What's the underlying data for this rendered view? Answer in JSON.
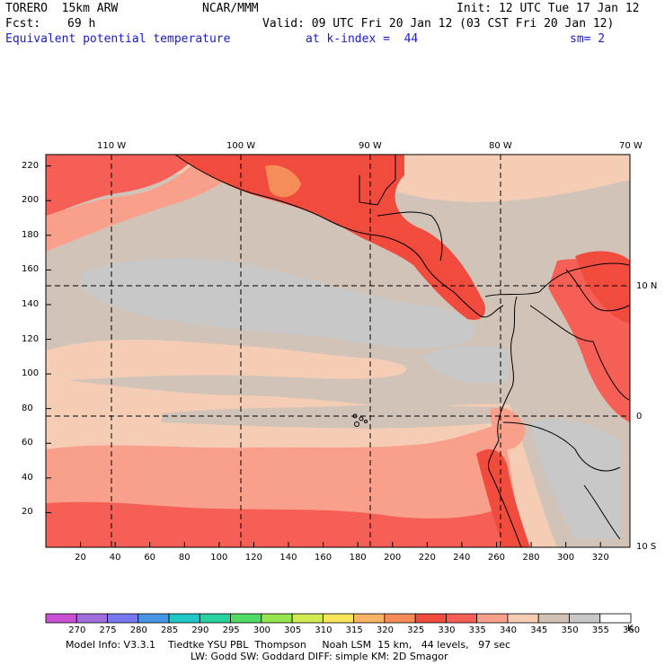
{
  "header": {
    "model": "TORERO  15km ARW",
    "org": "NCAR/MMM",
    "init": "Init: 12 UTC Tue 17 Jan 12",
    "fcst_label": "Fcst:",
    "fcst_value": "69 h",
    "valid": "Valid: 09 UTC Fri 20 Jan 12 (03 CST Fri 20 Jan 12)",
    "field": "Equivalent potential temperature",
    "level": "at k-index =  44",
    "smoothing": "sm= 2"
  },
  "map": {
    "lon_labels": [
      "110 W",
      "100 W",
      "90 W",
      "80 W",
      "70 W"
    ],
    "lat_labels": [
      "10 N",
      "0",
      "10 S"
    ],
    "y_grid_ticks": [
      "220",
      "200",
      "180",
      "160",
      "140",
      "120",
      "100",
      "80",
      "60",
      "40",
      "20"
    ],
    "x_grid_ticks": [
      "20",
      "40",
      "60",
      "80",
      "100",
      "120",
      "140",
      "160",
      "180",
      "200",
      "220",
      "240",
      "260",
      "280",
      "300",
      "320"
    ]
  },
  "colorbar": {
    "labels": [
      "270",
      "275",
      "280",
      "285",
      "290",
      "295",
      "300",
      "305",
      "310",
      "315",
      "320",
      "325",
      "330",
      "335",
      "340",
      "345",
      "350",
      "355",
      "360"
    ],
    "unit": "K",
    "colors": [
      "#c850d2",
      "#a06edc",
      "#7878f0",
      "#4896e6",
      "#20c8c8",
      "#28d2a0",
      "#50dc64",
      "#96e650",
      "#d2eb50",
      "#f5e65a",
      "#f8b464",
      "#f58c5a",
      "#f04b3c",
      "#f55f55",
      "#f8a08c",
      "#f5cdb4",
      "#d2c3b9",
      "#c8c8c8",
      "#ffffff"
    ]
  },
  "footer": {
    "line1": "Model Info: V3.3.1    Tiedtke YSU PBL  Thompson     Noah LSM  15 km,   44 levels,   97 sec",
    "line2": "LW: Godd SW: Goddard DIFF: simple KM: 2D Smagor"
  }
}
